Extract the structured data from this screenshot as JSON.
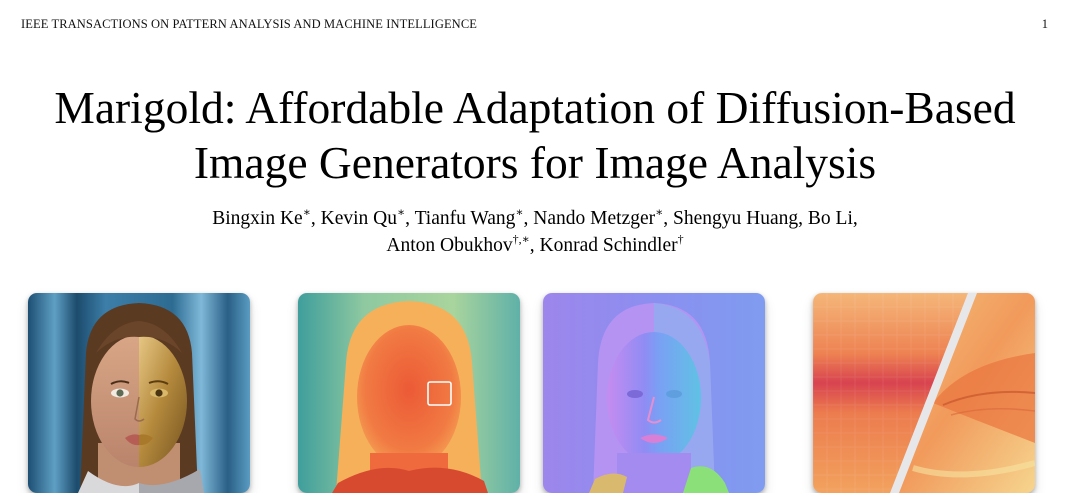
{
  "header": {
    "running_head": "IEEE TRANSACTIONS ON PATTERN ANALYSIS AND MACHINE INTELLIGENCE",
    "page_number": "1"
  },
  "paper": {
    "title_line1": "Marigold: Affordable Adaptation of Diffusion-Based",
    "title_line2": "Image Generators for Image Analysis",
    "authors": [
      {
        "name": "Bingxin Ke",
        "mark": "∗",
        "sep": ", "
      },
      {
        "name": "Kevin Qu",
        "mark": "∗",
        "sep": ", "
      },
      {
        "name": "Tianfu Wang",
        "mark": "∗",
        "sep": ", "
      },
      {
        "name": "Nando Metzger",
        "mark": "∗",
        "sep": ", "
      },
      {
        "name": "Shengyu Huang",
        "mark": "",
        "sep": ", "
      },
      {
        "name": "Bo Li",
        "mark": "",
        "sep": ","
      },
      {
        "name": "Anton Obukhov",
        "mark": "†,∗",
        "sep": ", "
      },
      {
        "name": "Konrad Schindler",
        "mark": "†",
        "sep": ""
      }
    ]
  },
  "figure": {
    "panels": [
      {
        "id": "input",
        "style": "rgb photo"
      },
      {
        "id": "depth",
        "style": "depth map"
      },
      {
        "id": "normals",
        "style": "surface normals"
      },
      {
        "id": "zoom",
        "style": "zoomed detail comparison"
      }
    ]
  }
}
